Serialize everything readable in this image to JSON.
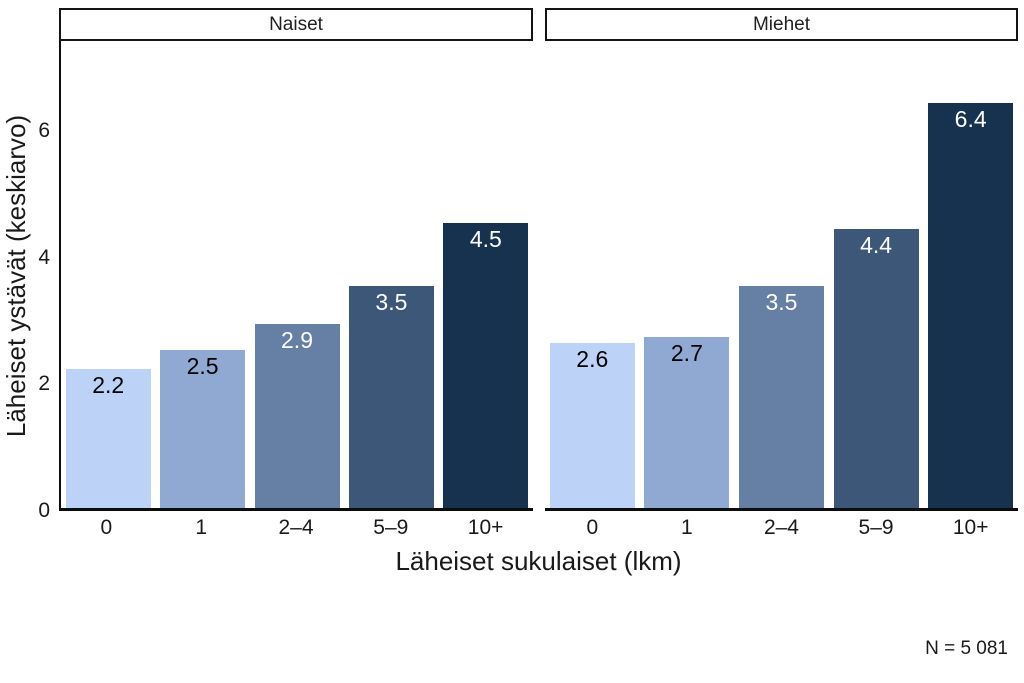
{
  "chart_data": {
    "type": "bar",
    "title": "",
    "facets": [
      {
        "label": "Naiset",
        "values": [
          2.2,
          2.5,
          2.9,
          3.5,
          4.5
        ]
      },
      {
        "label": "Miehet",
        "values": [
          2.6,
          2.7,
          3.5,
          4.4,
          6.4
        ]
      }
    ],
    "categories": [
      "0",
      "1",
      "2–4",
      "5–9",
      "10+"
    ],
    "xlabel": "Läheiset sukulaiset (lkm)",
    "ylabel": "Läheiset ystävät (keskiarvo)",
    "y_ticks": [
      0,
      2,
      4,
      6
    ],
    "ylim": [
      0,
      7.4
    ],
    "grid": false,
    "legend": "none",
    "bar_colors": [
      "#bdd2f7",
      "#8fa9d2",
      "#6580a4",
      "#3d5779",
      "#16324f"
    ],
    "bar_label_colors": [
      "#000000",
      "#000000",
      "#ffffff",
      "#ffffff",
      "#ffffff"
    ],
    "note": "N = 5 081"
  }
}
